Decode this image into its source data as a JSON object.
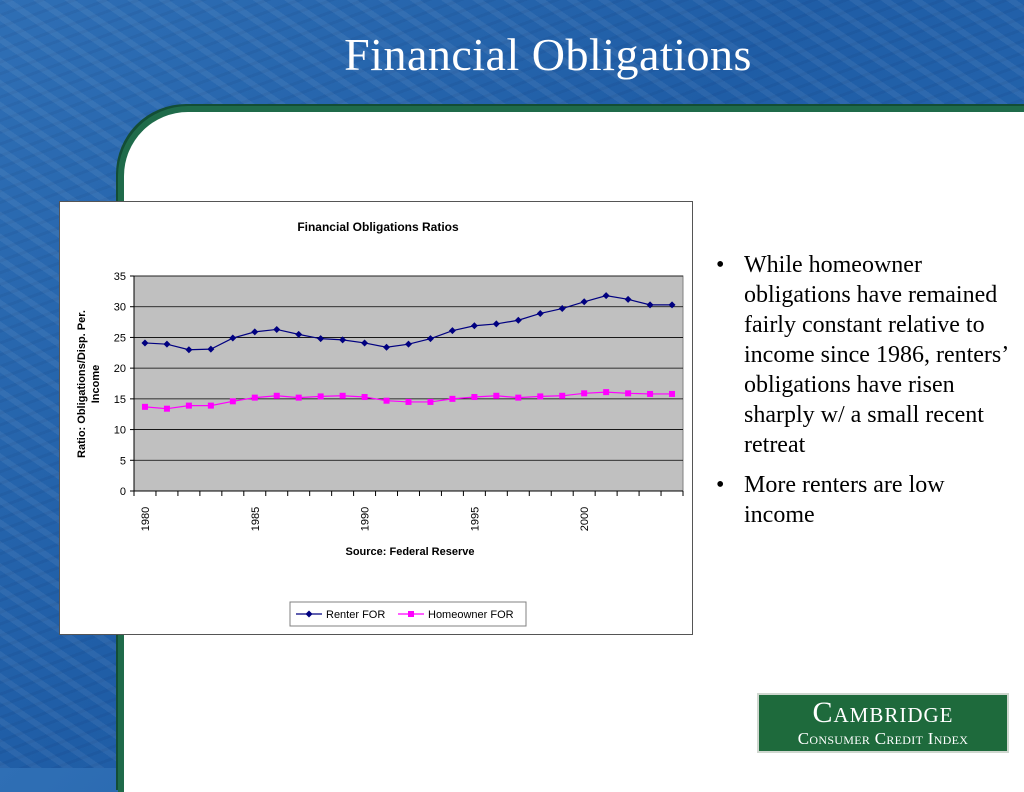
{
  "slide": {
    "title": "Financial Obligations",
    "bullets": [
      "While homeowner obligations have remained fairly constant relative to income since 1986, renters’ obligations have risen sharply w/ a small recent retreat",
      "More renters are low income"
    ],
    "bullet_symbol": "•"
  },
  "logo": {
    "line1": "Cambridge",
    "line2": "Consumer Credit Index"
  },
  "colors": {
    "renter": "#000080",
    "homeowner": "#ff00ff",
    "plot_bg": "#c0c0c0",
    "panel_border": "#1f6b4a",
    "logo_bg": "#1e6a3c"
  },
  "chart_data": {
    "type": "line",
    "title": "Financial Obligations Ratios",
    "xlabel": "Source:  Federal Reserve",
    "ylabel": "Ratio: Obligations/Disp. Per. Income",
    "ylim": [
      0,
      35
    ],
    "yticks": [
      0,
      5,
      10,
      15,
      20,
      25,
      30,
      35
    ],
    "xtick_labels": [
      "1980",
      "1985",
      "1990",
      "1995",
      "2000"
    ],
    "x": [
      1980,
      1981,
      1982,
      1983,
      1984,
      1985,
      1986,
      1987,
      1988,
      1989,
      1990,
      1991,
      1992,
      1993,
      1994,
      1995,
      1996,
      1997,
      1998,
      1999,
      2000,
      2001,
      2002,
      2003,
      2004
    ],
    "grid": true,
    "legend_position": "bottom",
    "series": [
      {
        "name": "Renter FOR",
        "marker": "diamond",
        "values": [
          24.1,
          23.9,
          23.0,
          23.1,
          24.9,
          25.9,
          26.3,
          25.5,
          24.8,
          24.6,
          24.1,
          23.4,
          23.9,
          24.8,
          26.1,
          26.9,
          27.2,
          27.8,
          28.9,
          29.7,
          30.8,
          31.8,
          31.2,
          30.3,
          30.3
        ]
      },
      {
        "name": "Homeowner FOR",
        "marker": "square",
        "values": [
          13.7,
          13.4,
          13.9,
          13.9,
          14.6,
          15.2,
          15.5,
          15.2,
          15.4,
          15.5,
          15.3,
          14.7,
          14.5,
          14.5,
          15.0,
          15.3,
          15.5,
          15.2,
          15.4,
          15.5,
          15.9,
          16.1,
          15.9,
          15.8,
          15.8
        ]
      }
    ]
  }
}
